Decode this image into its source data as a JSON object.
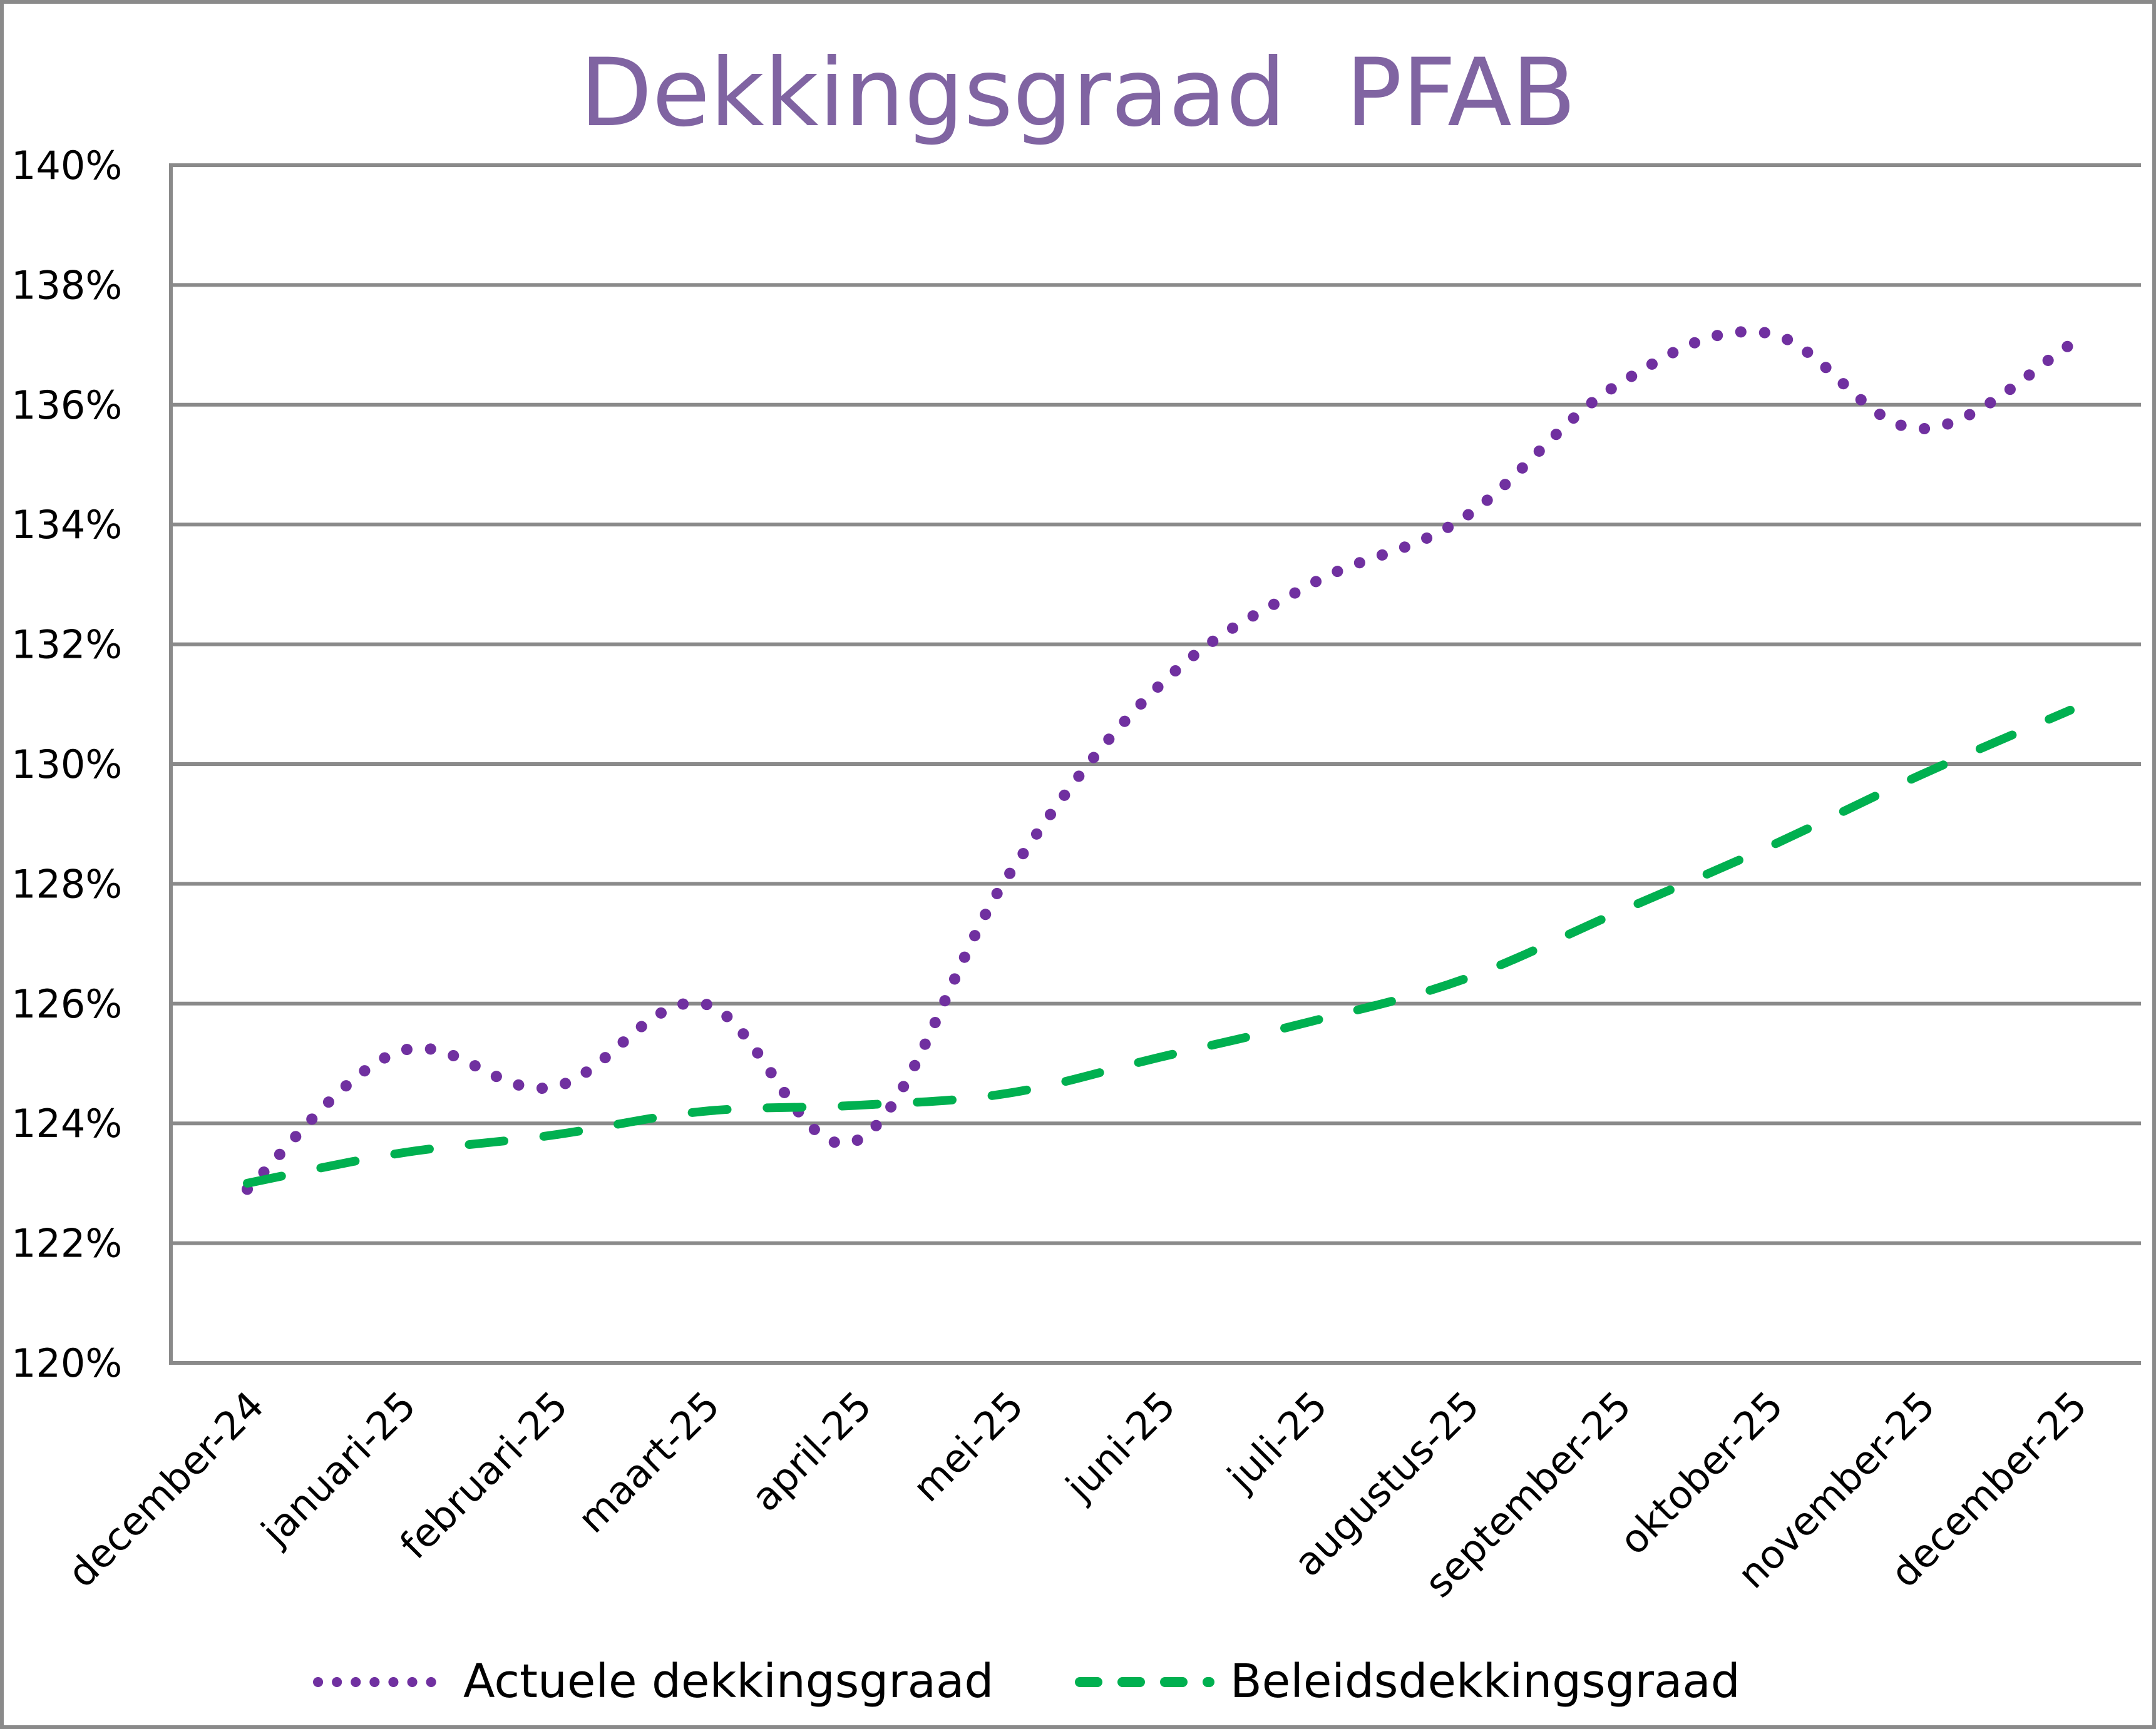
{
  "chart_data": {
    "type": "line",
    "title": "Dekkingsgraad  PFAB",
    "xlabel": "",
    "ylabel": "",
    "ylim": [
      1.2,
      1.4
    ],
    "y_ticks": [
      "120%",
      "122%",
      "124%",
      "126%",
      "128%",
      "130%",
      "132%",
      "134%",
      "136%",
      "138%",
      "140%"
    ],
    "grid": true,
    "legend_position": "bottom",
    "categories": [
      "december-24",
      "januari-25",
      "februari-25",
      "maart-25",
      "april-25",
      "mei-25",
      "juni-25",
      "juli-25",
      "augustus-25",
      "september-25",
      "oktober-25",
      "november-25",
      "december-25"
    ],
    "series": [
      {
        "name": "Actuele dekkingsgraad",
        "color": "#7030a0",
        "style": "dotted",
        "values": [
          122.9,
          125.2,
          124.6,
          126.0,
          123.7,
          128.1,
          131.3,
          133.0,
          134.1,
          136.3,
          137.2,
          135.6,
          137.0
        ]
      },
      {
        "name": "Beleidsdekkingsgraad",
        "color": "#00b050",
        "style": "dashed",
        "values": [
          123.0,
          123.5,
          123.8,
          124.2,
          124.3,
          124.5,
          125.1,
          125.7,
          126.4,
          127.5,
          128.6,
          129.8,
          130.9
        ]
      }
    ]
  },
  "legend": {
    "items": [
      {
        "label": "Actuele dekkingsgraad"
      },
      {
        "label": "Beleidsdekkingsgraad"
      }
    ]
  }
}
